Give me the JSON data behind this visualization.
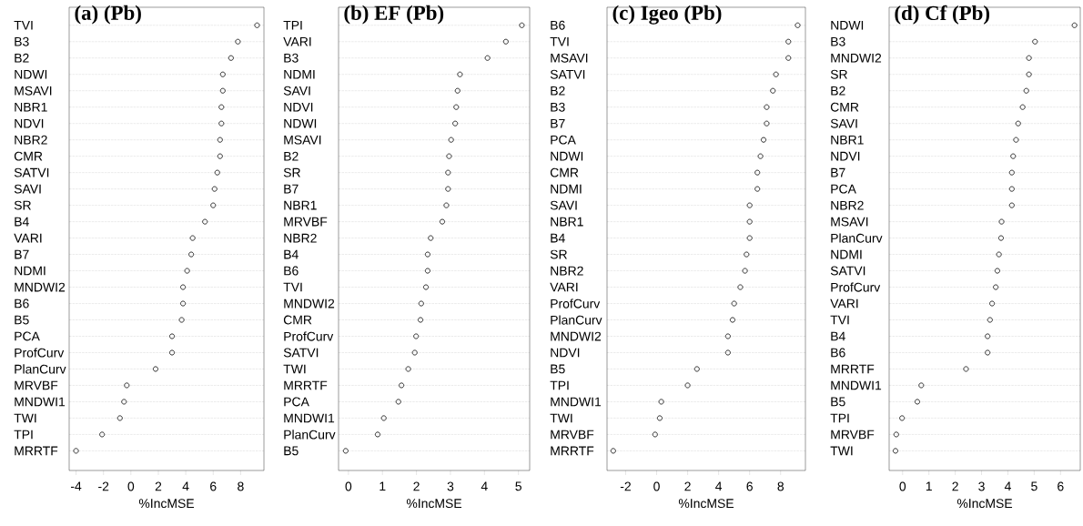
{
  "chart_data": [
    {
      "type": "scatter",
      "orientation": "horizontal",
      "title": "(a) (Pb)",
      "xlabel": "%IncMSE",
      "marker": "circle",
      "grid": "y",
      "color": "#000000",
      "categories": [
        "TVI",
        "B3",
        "B2",
        "NDWI",
        "MSAVI",
        "NBR1",
        "NDVI",
        "NBR2",
        "CMR",
        "SATVI",
        "SAVI",
        "SR",
        "B4",
        "VARI",
        "B7",
        "NDMI",
        "MNDWI2",
        "B6",
        "B5",
        "PCA",
        "ProfCurv",
        "PlanCurv",
        "MRVBF",
        "MNDWI1",
        "TWI",
        "TPI",
        "MRRTF"
      ],
      "values": [
        9.2,
        7.8,
        7.3,
        6.7,
        6.7,
        6.6,
        6.6,
        6.5,
        6.5,
        6.3,
        6.1,
        6.0,
        5.4,
        4.5,
        4.4,
        4.1,
        3.8,
        3.8,
        3.7,
        3.0,
        3.0,
        1.8,
        -0.3,
        -0.5,
        -0.8,
        -2.1,
        -4.0
      ],
      "xlim": [
        -4.5,
        9.7
      ],
      "xticks": [
        -4,
        -2,
        0,
        2,
        4,
        6,
        8
      ]
    },
    {
      "type": "scatter",
      "orientation": "horizontal",
      "title": "(b) EF (Pb)",
      "xlabel": "%IncMSE",
      "marker": "circle",
      "grid": "y",
      "color": "#000000",
      "categories": [
        "TPI",
        "VARI",
        "B3",
        "NDMI",
        "SAVI",
        "NDVI",
        "NDWI",
        "MSAVI",
        "B2",
        "SR",
        "B7",
        "NBR1",
        "MRVBF",
        "NBR2",
        "B4",
        "B6",
        "TVI",
        "MNDWI2",
        "CMR",
        "ProfCurv",
        "SATVI",
        "TWI",
        "MRRTF",
        "PCA",
        "MNDWI1",
        "PlanCurv",
        "B5"
      ],
      "values": [
        5.1,
        4.63,
        4.09,
        3.28,
        3.21,
        3.17,
        3.14,
        3.02,
        2.96,
        2.93,
        2.93,
        2.88,
        2.76,
        2.42,
        2.33,
        2.33,
        2.28,
        2.14,
        2.12,
        1.99,
        1.95,
        1.76,
        1.56,
        1.47,
        1.04,
        0.86,
        -0.08
      ],
      "xlim": [
        -0.29,
        5.33
      ],
      "xticks": [
        0,
        1,
        2,
        3,
        4,
        5
      ]
    },
    {
      "type": "scatter",
      "orientation": "horizontal",
      "title": "(c) Igeo (Pb)",
      "xlabel": "%IncMSE",
      "marker": "circle",
      "grid": "y",
      "color": "#000000",
      "categories": [
        "B6",
        "TVI",
        "MSAVI",
        "SATVI",
        "B2",
        "B3",
        "B7",
        "PCA",
        "NDWI",
        "CMR",
        "NDMI",
        "SAVI",
        "NBR1",
        "B4",
        "SR",
        "NBR2",
        "VARI",
        "ProfCurv",
        "PlanCurv",
        "MNDWI2",
        "NDVI",
        "B5",
        "TPI",
        "MNDWI1",
        "TWI",
        "MRVBF",
        "MRRTF"
      ],
      "values": [
        9.1,
        8.5,
        8.5,
        7.7,
        7.5,
        7.1,
        7.1,
        6.9,
        6.7,
        6.5,
        6.5,
        6.0,
        6.0,
        6.0,
        5.8,
        5.7,
        5.4,
        5.0,
        4.9,
        4.6,
        4.6,
        2.6,
        2.0,
        0.3,
        0.2,
        -0.1,
        -2.8
      ],
      "xlim": [
        -3.2,
        9.6
      ],
      "xticks": [
        -2,
        0,
        2,
        4,
        6,
        8
      ]
    },
    {
      "type": "scatter",
      "orientation": "horizontal",
      "title": "(d)    Cf (Pb)",
      "xlabel": "%IncMSE",
      "marker": "circle",
      "grid": "y",
      "color": "#000000",
      "categories": [
        "NDWI",
        "B3",
        "MNDWI2",
        "SR",
        "B2",
        "CMR",
        "SAVI",
        "NBR1",
        "NDVI",
        "B7",
        "PCA",
        "NBR2",
        "MSAVI",
        "PlanCurv",
        "NDMI",
        "SATVI",
        "ProfCurv",
        "VARI",
        "TVI",
        "B4",
        "B6",
        "MRRTF",
        "MNDWI1",
        "B5",
        "TPI",
        "MRVBF",
        "TWI"
      ],
      "values": [
        6.53,
        5.03,
        4.8,
        4.8,
        4.7,
        4.56,
        4.39,
        4.31,
        4.2,
        4.15,
        4.15,
        4.15,
        3.76,
        3.74,
        3.66,
        3.6,
        3.54,
        3.4,
        3.32,
        3.23,
        3.23,
        2.41,
        0.71,
        0.56,
        -0.02,
        -0.24,
        -0.27
      ],
      "xlim": [
        -0.51,
        6.75
      ],
      "xticks": [
        0,
        1,
        2,
        3,
        4,
        5,
        6
      ]
    }
  ]
}
